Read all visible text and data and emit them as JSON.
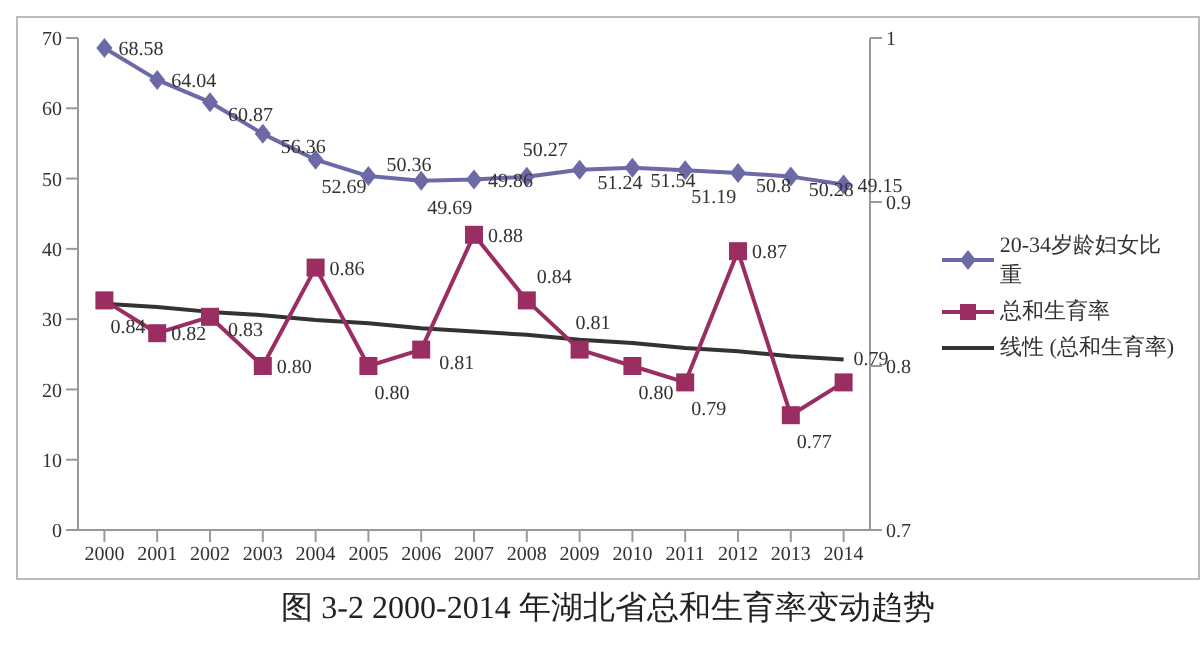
{
  "chart_data": {
    "type": "line",
    "title": "图 3-2  2000-2014 年湖北省总和生育率变动趋势",
    "categories": [
      "2000",
      "2001",
      "2002",
      "2003",
      "2004",
      "2005",
      "2006",
      "2007",
      "2008",
      "2009",
      "2010",
      "2011",
      "2012",
      "2013",
      "2014"
    ],
    "series": [
      {
        "name": "20-34岁龄妇女比重",
        "color": "#6b6aa6",
        "marker": "diamond",
        "values": [
          68.58,
          64.04,
          60.87,
          56.36,
          52.69,
          50.36,
          49.69,
          49.86,
          50.27,
          51.24,
          51.54,
          51.19,
          50.8,
          50.28,
          49.15
        ],
        "value_labels": [
          "68.58",
          "64.04",
          "60.87",
          "56.36",
          "52.69",
          "50.36",
          "49.69",
          "49.86",
          "50.27",
          "51.24",
          "51.54",
          "51.19",
          "50.8",
          "50.28",
          "49.15"
        ]
      },
      {
        "name": "总和生育率",
        "color": "#9a2d62",
        "marker": "square",
        "axis": "y2",
        "values": [
          0.84,
          0.82,
          0.83,
          0.8,
          0.86,
          0.8,
          0.81,
          0.88,
          0.84,
          0.81,
          0.8,
          0.79,
          0.87,
          0.77,
          0.79
        ],
        "value_labels": [
          "0.84",
          "0.82",
          "0.83",
          "0.80",
          "0.86",
          "0.80",
          "0.81",
          "0.88",
          "0.84",
          "0.81",
          "0.80",
          "0.79",
          "0.87",
          "0.77",
          "0.79"
        ]
      },
      {
        "name": "线性 (总和生育率)",
        "type": "line",
        "color": "#333333",
        "marker": "none",
        "axis": "y2",
        "values": [
          0.838,
          0.836,
          0.833,
          0.831,
          0.828,
          0.826,
          0.823,
          0.821,
          0.819,
          0.816,
          0.814,
          0.811,
          0.809,
          0.806,
          0.804
        ]
      }
    ],
    "ylim": [
      0,
      70
    ],
    "yticks": [
      0,
      10,
      20,
      30,
      40,
      50,
      60,
      70
    ],
    "y2lim": [
      0.7,
      1
    ],
    "y2ticks": [
      0.7,
      0.8,
      0.9,
      1
    ],
    "legend": "right"
  }
}
